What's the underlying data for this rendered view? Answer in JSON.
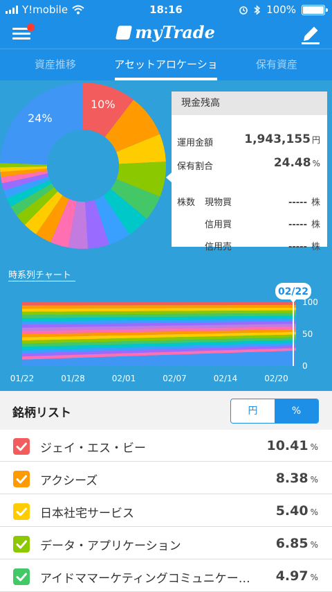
{
  "status_bar": {
    "carrier": "Y!mobile",
    "time": "18:16",
    "battery": "100%"
  },
  "header": {
    "app_title": "myTrade"
  },
  "tabs": [
    {
      "label": "資産推移"
    },
    {
      "label": "アセットアロケーション"
    },
    {
      "label": "保有資産"
    }
  ],
  "allocation": {
    "slices": [
      {
        "value": 10.41,
        "color": "#f25c5c"
      },
      {
        "value": 8.38,
        "color": "#ff9a00"
      },
      {
        "value": 5.4,
        "color": "#ffcc00"
      },
      {
        "value": 6.85,
        "color": "#8cc800"
      },
      {
        "value": 4.97,
        "color": "#44c767"
      },
      {
        "value": 4.5,
        "color": "#00c8c8"
      },
      {
        "value": 4.3,
        "color": "#3aa0ff"
      },
      {
        "value": 4.2,
        "color": "#9a6bff"
      },
      {
        "value": 3.8,
        "color": "#c37be0"
      },
      {
        "value": 3.5,
        "color": "#ff6fb2"
      },
      {
        "value": 3.2,
        "color": "#ff9a00"
      },
      {
        "value": 2.8,
        "color": "#ffcc00"
      },
      {
        "value": 2.4,
        "color": "#8cc800"
      },
      {
        "value": 2.0,
        "color": "#44c767"
      },
      {
        "value": 1.8,
        "color": "#00c8c8"
      },
      {
        "value": 1.6,
        "color": "#3aa0ff"
      },
      {
        "value": 1.4,
        "color": "#9a6bff"
      },
      {
        "value": 1.2,
        "color": "#ff6fb2"
      },
      {
        "value": 1.0,
        "color": "#ff9a00"
      },
      {
        "value": 0.9,
        "color": "#ffcc00"
      },
      {
        "value": 0.8,
        "color": "#8cc800"
      },
      {
        "value": 24.48,
        "color": "#3f96f5"
      }
    ],
    "label_top": "10%",
    "label_cash": "24%"
  },
  "cash": {
    "title": "現金残高",
    "amount_label": "運用金額",
    "amount_value": "1,943,155",
    "amount_unit": "円",
    "ratio_label": "保有割合",
    "ratio_value": "24.48",
    "ratio_unit": "%",
    "shares_label": "株数",
    "rows": [
      {
        "label": "現物買",
        "value": "-----",
        "unit": "株"
      },
      {
        "label": "信用買",
        "value": "-----",
        "unit": "株"
      },
      {
        "label": "信用売",
        "value": "-----",
        "unit": "株"
      }
    ]
  },
  "timeseries": {
    "title": "時系列チャート",
    "selected_date": "02/22",
    "y_ticks": [
      "100",
      "50",
      "0"
    ],
    "x_ticks": [
      "01/22",
      "01/28",
      "02/01",
      "02/07",
      "02/14",
      "02/20"
    ],
    "band_colors": [
      "#f25c5c",
      "#ff9a00",
      "#ffcc00",
      "#8cc800",
      "#44c767",
      "#00c8c8",
      "#3aa0ff",
      "#9a6bff",
      "#c37be0",
      "#ff6fb2",
      "#ff9a00",
      "#ffcc00",
      "#8cc800",
      "#44c767",
      "#00c8c8",
      "#3aa0ff",
      "#9a6bff",
      "#ff6fb2"
    ],
    "cash_color": "#3f96f5",
    "cash_share_start": 0.1,
    "cash_share_end": 0.24
  },
  "list": {
    "title": "銘柄リスト",
    "toggle_yen": "円",
    "toggle_pct": "%",
    "items": [
      {
        "name": "ジェイ・エス・ビー",
        "pct": "10.41",
        "unit": "%",
        "color": "#f25c5c"
      },
      {
        "name": "アクシーズ",
        "pct": "8.38",
        "unit": "%",
        "color": "#ff9a00"
      },
      {
        "name": "日本社宅サービス",
        "pct": "5.40",
        "unit": "%",
        "color": "#ffcc00"
      },
      {
        "name": "データ・アプリケーション",
        "pct": "6.85",
        "unit": "%",
        "color": "#8cc800"
      },
      {
        "name": "アイドママーケティングコミュニケー…",
        "pct": "4.97",
        "unit": "%",
        "color": "#44c767"
      }
    ]
  }
}
